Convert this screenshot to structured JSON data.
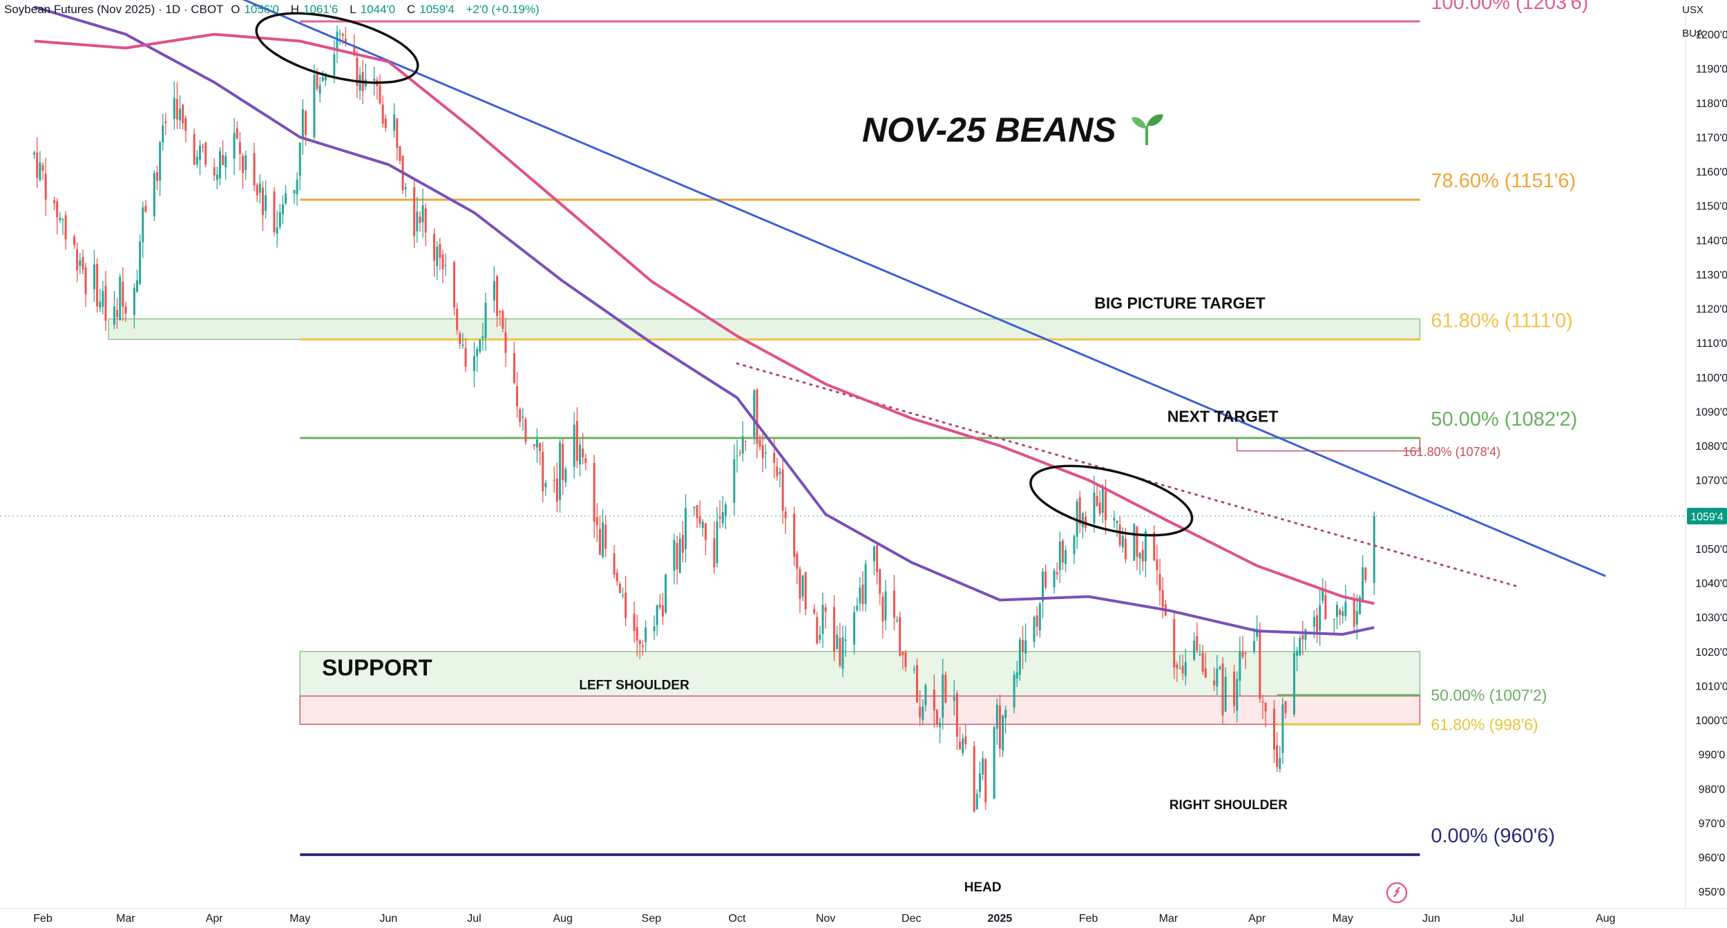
{
  "header": {
    "symbol": "Soybean Futures (Nov 2025) · 1D · CBOT",
    "open_label": "O",
    "open": "1056'0",
    "high_label": "H",
    "high": "1061'6",
    "low_label": "L",
    "low": "1044'0",
    "close_label": "C",
    "close": "1059'4",
    "change": "+2'0 (+0.19%)"
  },
  "axis": {
    "currency": "USX",
    "unit": "BUA"
  },
  "chart_data": {
    "type": "candlestick",
    "title": "NOV-25 BEANS",
    "title_icon": "seedling-icon",
    "ylim": [
      945,
      1210
    ],
    "y_ticks": [
      {
        "v": 950,
        "label": "950'0"
      },
      {
        "v": 960,
        "label": "960'0"
      },
      {
        "v": 970,
        "label": "970'0"
      },
      {
        "v": 980,
        "label": "980'0"
      },
      {
        "v": 990,
        "label": "990'0"
      },
      {
        "v": 1000,
        "label": "1000'0"
      },
      {
        "v": 1010,
        "label": "1010'0"
      },
      {
        "v": 1020,
        "label": "1020'0"
      },
      {
        "v": 1030,
        "label": "1030'0"
      },
      {
        "v": 1040,
        "label": "1040'0"
      },
      {
        "v": 1050,
        "label": "1050'0"
      },
      {
        "v": 1060,
        "label": "1060'0"
      },
      {
        "v": 1070,
        "label": "1070'0"
      },
      {
        "v": 1080,
        "label": "1080'0"
      },
      {
        "v": 1090,
        "label": "1090'0"
      },
      {
        "v": 1100,
        "label": "1100'0"
      },
      {
        "v": 1110,
        "label": "1110'0"
      },
      {
        "v": 1120,
        "label": "1120'0"
      },
      {
        "v": 1130,
        "label": "1130'0"
      },
      {
        "v": 1140,
        "label": "1140'0"
      },
      {
        "v": 1150,
        "label": "1150'0"
      },
      {
        "v": 1160,
        "label": "1160'0"
      },
      {
        "v": 1170,
        "label": "1170'0"
      },
      {
        "v": 1180,
        "label": "1180'0"
      },
      {
        "v": 1190,
        "label": "1190'0"
      },
      {
        "v": 1200,
        "label": "1200'0"
      }
    ],
    "x_ticks": [
      "Feb",
      "Mar",
      "Apr",
      "May",
      "Jun",
      "Jul",
      "Aug",
      "Sep",
      "Oct",
      "Nov",
      "Dec",
      "2025",
      "Feb",
      "Mar",
      "Apr",
      "May",
      "Jun",
      "Jul",
      "Aug"
    ],
    "x_tick_dates": [
      "2024-02-01",
      "2024-03-01",
      "2024-04-01",
      "2024-05-01",
      "2024-06-01",
      "2024-07-01",
      "2024-08-01",
      "2024-09-01",
      "2024-10-01",
      "2024-11-01",
      "2024-12-01",
      "2025-01-01",
      "2025-02-01",
      "2025-03-01",
      "2025-04-01",
      "2025-05-01",
      "2025-06-01",
      "2025-07-01",
      "2025-08-01"
    ],
    "last_price": {
      "v": 1059.5,
      "label": "1059'4"
    },
    "price_path": [
      [
        "2024-01-29",
        1165
      ],
      [
        "2024-02-05",
        1150
      ],
      [
        "2024-02-12",
        1138
      ],
      [
        "2024-02-19",
        1125
      ],
      [
        "2024-02-26",
        1118
      ],
      [
        "2024-03-04",
        1133
      ],
      [
        "2024-03-11",
        1160
      ],
      [
        "2024-03-18",
        1178
      ],
      [
        "2024-03-25",
        1165
      ],
      [
        "2024-04-01",
        1160
      ],
      [
        "2024-04-08",
        1170
      ],
      [
        "2024-04-15",
        1155
      ],
      [
        "2024-04-22",
        1148
      ],
      [
        "2024-04-29",
        1160
      ],
      [
        "2024-05-06",
        1185
      ],
      [
        "2024-05-13",
        1200
      ],
      [
        "2024-05-20",
        1192
      ],
      [
        "2024-05-27",
        1185
      ],
      [
        "2024-06-03",
        1170
      ],
      [
        "2024-06-10",
        1150
      ],
      [
        "2024-06-17",
        1138
      ],
      [
        "2024-06-24",
        1120
      ],
      [
        "2024-07-01",
        1105
      ],
      [
        "2024-07-08",
        1125
      ],
      [
        "2024-07-15",
        1095
      ],
      [
        "2024-07-22",
        1080
      ],
      [
        "2024-07-29",
        1068
      ],
      [
        "2024-08-05",
        1082
      ],
      [
        "2024-08-12",
        1062
      ],
      [
        "2024-08-19",
        1042
      ],
      [
        "2024-08-26",
        1025
      ],
      [
        "2024-09-02",
        1030
      ],
      [
        "2024-09-09",
        1045
      ],
      [
        "2024-09-16",
        1060
      ],
      [
        "2024-09-23",
        1052
      ],
      [
        "2024-09-30",
        1075
      ],
      [
        "2024-10-07",
        1090
      ],
      [
        "2024-10-14",
        1075
      ],
      [
        "2024-10-21",
        1048
      ],
      [
        "2024-10-28",
        1030
      ],
      [
        "2024-11-04",
        1022
      ],
      [
        "2024-11-11",
        1030
      ],
      [
        "2024-11-18",
        1045
      ],
      [
        "2024-11-25",
        1025
      ],
      [
        "2024-12-02",
        1010
      ],
      [
        "2024-12-09",
        1005
      ],
      [
        "2024-12-16",
        1008
      ],
      [
        "2024-12-23",
        975
      ],
      [
        "2024-12-30",
        992
      ],
      [
        "2025-01-06",
        1015
      ],
      [
        "2025-01-13",
        1030
      ],
      [
        "2025-01-20",
        1045
      ],
      [
        "2025-01-27",
        1052
      ],
      [
        "2025-02-03",
        1068
      ],
      [
        "2025-02-10",
        1055
      ],
      [
        "2025-02-17",
        1050
      ],
      [
        "2025-02-24",
        1045
      ],
      [
        "2025-03-03",
        1015
      ],
      [
        "2025-03-10",
        1020
      ],
      [
        "2025-03-17",
        1012
      ],
      [
        "2025-03-24",
        1008
      ],
      [
        "2025-03-31",
        1025
      ],
      [
        "2025-04-07",
        985
      ],
      [
        "2025-04-14",
        1020
      ],
      [
        "2025-04-21",
        1030
      ],
      [
        "2025-04-28",
        1035
      ],
      [
        "2025-05-05",
        1028
      ],
      [
        "2025-05-12",
        1059.5
      ]
    ],
    "ma_pink": [
      [
        "2024-01-29",
        1198
      ],
      [
        "2024-03-01",
        1196
      ],
      [
        "2024-04-01",
        1200
      ],
      [
        "2024-05-01",
        1198
      ],
      [
        "2024-06-01",
        1192
      ],
      [
        "2024-07-01",
        1172
      ],
      [
        "2024-08-01",
        1150
      ],
      [
        "2024-09-01",
        1128
      ],
      [
        "2024-10-01",
        1112
      ],
      [
        "2024-11-01",
        1098
      ],
      [
        "2024-12-01",
        1088
      ],
      [
        "2025-01-01",
        1080
      ],
      [
        "2025-02-01",
        1070
      ],
      [
        "2025-03-01",
        1058
      ],
      [
        "2025-04-01",
        1045
      ],
      [
        "2025-05-01",
        1036
      ],
      [
        "2025-05-12",
        1034
      ]
    ],
    "ma_purple": [
      [
        "2024-01-29",
        1208
      ],
      [
        "2024-03-01",
        1200
      ],
      [
        "2024-04-01",
        1186
      ],
      [
        "2024-05-01",
        1170
      ],
      [
        "2024-06-01",
        1162
      ],
      [
        "2024-07-01",
        1148
      ],
      [
        "2024-08-01",
        1128
      ],
      [
        "2024-09-01",
        1110
      ],
      [
        "2024-10-01",
        1094
      ],
      [
        "2024-11-01",
        1060
      ],
      [
        "2024-12-01",
        1046
      ],
      [
        "2025-01-01",
        1035
      ],
      [
        "2025-02-01",
        1036
      ],
      [
        "2025-03-01",
        1032
      ],
      [
        "2025-04-01",
        1026
      ],
      [
        "2025-05-01",
        1025
      ],
      [
        "2025-05-12",
        1027
      ]
    ],
    "trendline_blue": [
      [
        "2024-03-20",
        1218
      ],
      [
        "2025-08-01",
        1042
      ]
    ],
    "trendline_dotted": [
      [
        "2024-10-01",
        1104
      ],
      [
        "2025-07-01",
        1039
      ]
    ],
    "fib_levels": [
      {
        "v": 1203.75,
        "label": "100.00% (1203'6)",
        "color": "#e0608f",
        "from": "2024-05-01"
      },
      {
        "v": 1151.75,
        "label": "78.60% (1151'6)",
        "color": "#f0a43a",
        "from": "2024-05-01"
      },
      {
        "v": 1111.0,
        "label": "61.80% (1111'0)",
        "color": "#f2c24a",
        "from": "2024-05-01"
      },
      {
        "v": 1082.25,
        "label": "50.00% (1082'2)",
        "color": "#6cae62",
        "from": "2024-05-01"
      },
      {
        "v": 960.75,
        "label": "0.00% (960'6)",
        "color": "#2a2a78",
        "from": "2024-05-01"
      },
      {
        "v": 1007.25,
        "label": "50.00% (1007'2)",
        "color": "#6cae62",
        "from": "2025-04-08"
      },
      {
        "v": 998.75,
        "label": "61.80% (998'6)",
        "color": "#e6c53e",
        "from": "2025-04-08"
      }
    ],
    "zones": [
      {
        "name": "big-picture-target",
        "from": "2024-02-24",
        "to": "2025-05-28",
        "y1": 1111,
        "y2": 1117,
        "fill": "#e7f4e4",
        "stroke": "#8cc58a"
      },
      {
        "name": "support-green",
        "from": "2024-05-01",
        "to": "2025-05-28",
        "y1": 1007,
        "y2": 1020,
        "fill": "#e9f5e6",
        "stroke": "#8cc58a"
      },
      {
        "name": "support-red",
        "from": "2024-05-01",
        "to": "2025-05-28",
        "y1": 998.75,
        "y2": 1007,
        "fill": "#fde8ea",
        "stroke": "#d06070"
      },
      {
        "name": "next-target",
        "from": "2025-03-25",
        "to": "2025-05-28",
        "y1": 1078.5,
        "y2": 1082.25,
        "fill": "#ffffff",
        "stroke": "#c94e5d"
      }
    ],
    "ellipses": [
      {
        "cx": "2024-05-14",
        "cy": 1196,
        "rx_days": 29,
        "ry": 8.5
      },
      {
        "cx": "2025-02-09",
        "cy": 1064,
        "rx_days": 29,
        "ry": 8.5
      }
    ],
    "annotations": [
      {
        "text": "BIG PICTURE TARGET",
        "date": "2025-03-05",
        "v": 1120.0,
        "size": 23
      },
      {
        "text": "NEXT TARGET",
        "date": "2025-03-20",
        "v": 1087.0,
        "size": 23
      },
      {
        "text": "161.80% (1078'4)",
        "date": "2025-05-22",
        "v": 1077.0,
        "size": 18,
        "color": "#c94e5d",
        "anchor": "start"
      },
      {
        "text": "SUPPORT",
        "date": "2024-05-28",
        "v": 1013.0,
        "size": 33
      },
      {
        "text": "LEFT SHOULDER",
        "date": "2024-08-26",
        "v": 1009.0,
        "size": 19
      },
      {
        "text": "RIGHT SHOULDER",
        "date": "2025-03-22",
        "v": 974.0,
        "size": 19
      },
      {
        "text": "HEAD",
        "date": "2024-12-26",
        "v": 950.0,
        "size": 19
      }
    ]
  }
}
